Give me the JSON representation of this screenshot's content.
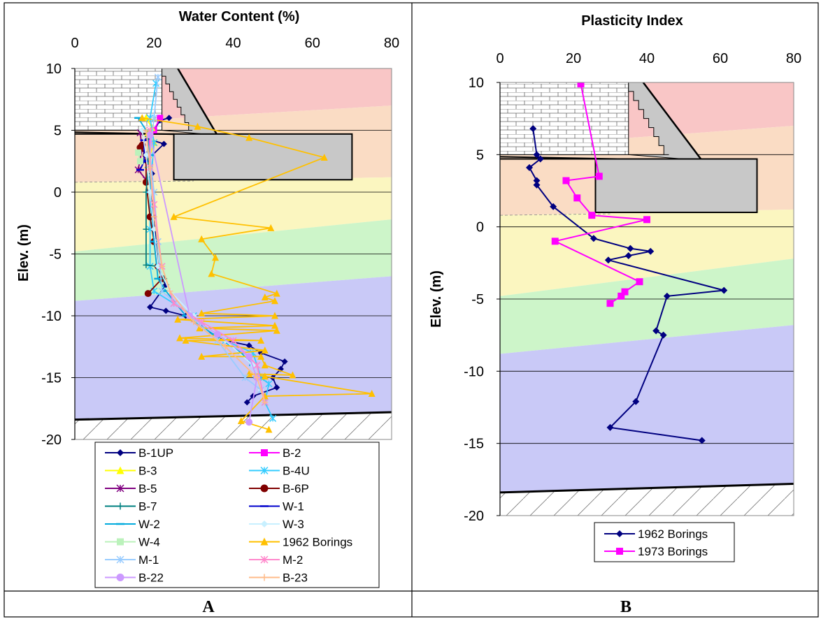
{
  "captions": {
    "left": "A",
    "right": "B"
  },
  "chart_data": [
    {
      "type": "line",
      "title": "Water Content (%)",
      "ylabel": "Elev. (m)",
      "xlabel": "",
      "xlim": [
        0,
        80
      ],
      "ylim": [
        -20,
        10
      ],
      "x_ticks": [
        "0",
        "20",
        "40",
        "60",
        "80"
      ],
      "y_ticks": [
        "10",
        "5",
        "0",
        "-5",
        "-10",
        "-15",
        "-20"
      ],
      "grid": "horizontal",
      "legend_position": "bottom",
      "layers": [
        {
          "color": "#f9c6c6",
          "top_left": 10,
          "top_right": 10,
          "bot_left": 5.5,
          "bot_right": 7
        },
        {
          "color": "#fadcc4",
          "top_left": 5.5,
          "top_right": 7,
          "bot_left": 0.8,
          "bot_right": 1.2
        },
        {
          "color": "#fbf6c0",
          "top_left": 0.8,
          "top_right": 1.2,
          "bot_left": -4.8,
          "bot_right": -2.2
        },
        {
          "color": "#cdf5c9",
          "top_left": -4.8,
          "top_right": -2.2,
          "bot_left": -8.8,
          "bot_right": -6.8
        },
        {
          "color": "#c9c9f7",
          "top_left": -8.8,
          "top_right": -6.8,
          "bot_left": -18.4,
          "bot_right": -17.8
        }
      ],
      "wall": {
        "x0": 0,
        "x1": 22,
        "y0": 5,
        "y1": 10,
        "slope_top_x": 22,
        "slope_bottom_x": 36
      },
      "structure": {
        "x0": 25,
        "x1": 70,
        "y0": 1,
        "y1": 4.7
      },
      "bedrock": {
        "y_left": -18.4,
        "y_right": -17.8
      },
      "series": [
        {
          "name": "B-1UP",
          "color": "#000080",
          "marker": "diamond",
          "points": [
            [
              23.8,
              6
            ],
            [
              21.5,
              5.8
            ],
            [
              20,
              5
            ],
            [
              18.5,
              4.3
            ],
            [
              22.5,
              3.9
            ],
            [
              18,
              2.5
            ],
            [
              19.5,
              1.5
            ],
            [
              19,
              0
            ],
            [
              20,
              -2
            ],
            [
              20.5,
              -4
            ],
            [
              21,
              -6
            ],
            [
              22,
              -7
            ],
            [
              23,
              -7.5
            ],
            [
              19,
              -9.3
            ],
            [
              23,
              -9.6
            ],
            [
              28,
              -10
            ],
            [
              32,
              -11
            ],
            [
              38,
              -12
            ],
            [
              44,
              -12.4
            ],
            [
              47,
              -13
            ],
            [
              53,
              -13.7
            ],
            [
              52,
              -14.3
            ],
            [
              50,
              -15
            ],
            [
              51,
              -15.8
            ],
            [
              45,
              -16.5
            ],
            [
              43.5,
              -17
            ]
          ]
        },
        {
          "name": "B-2",
          "color": "#ff00ff",
          "marker": "square",
          "points": [
            [
              21.5,
              6
            ],
            [
              20,
              5
            ],
            [
              19,
              4
            ]
          ]
        },
        {
          "name": "B-3",
          "color": "#ffff00",
          "marker": "triangle",
          "points": [
            [
              18,
              6
            ],
            [
              19.5,
              5.2
            ],
            [
              18.5,
              4.8
            ],
            [
              20,
              4
            ],
            [
              19,
              3
            ]
          ]
        },
        {
          "name": "B-4U",
          "color": "#33ccff",
          "marker": "xstar",
          "points": [
            [
              20.5,
              8.8
            ],
            [
              19,
              6
            ],
            [
              20,
              4
            ],
            [
              19,
              0
            ],
            [
              19,
              -3
            ],
            [
              19,
              -6
            ],
            [
              20,
              -8
            ],
            [
              25,
              -9
            ],
            [
              30,
              -10
            ],
            [
              38,
              -12
            ],
            [
              45,
              -13
            ],
            [
              47,
              -15
            ],
            [
              49,
              -15.5
            ],
            [
              48,
              -17
            ],
            [
              50,
              -18.3
            ]
          ]
        },
        {
          "name": "B-5",
          "color": "#800080",
          "marker": "xstar",
          "points": [
            [
              16.5,
              4.8
            ],
            [
              17,
              3.5
            ],
            [
              16,
              1.8
            ],
            [
              18,
              1
            ]
          ]
        },
        {
          "name": "B-6P",
          "color": "#800000",
          "marker": "circle",
          "points": [
            [
              17,
              3.8
            ],
            [
              16.5,
              3.6
            ],
            [
              18,
              3
            ],
            [
              18,
              0.8
            ],
            [
              19,
              -2
            ],
            [
              20,
              -4
            ],
            [
              21,
              -6
            ],
            [
              22,
              -7
            ],
            [
              18.5,
              -8.2
            ]
          ]
        },
        {
          "name": "B-7",
          "color": "#008080",
          "marker": "plus",
          "points": [
            [
              18.5,
              4.5
            ],
            [
              18.5,
              2
            ],
            [
              18,
              0
            ],
            [
              18,
              -3
            ],
            [
              18,
              -5.9
            ],
            [
              21,
              -6
            ],
            [
              22.5,
              -7
            ]
          ]
        },
        {
          "name": "W-1",
          "color": "#0000cc",
          "marker": "dash",
          "points": [
            [
              17.5,
              4.2
            ],
            [
              17.5,
              2.5
            ],
            [
              16.5,
              1.8
            ]
          ]
        },
        {
          "name": "W-2",
          "color": "#00aadd",
          "marker": "dash",
          "points": [
            [
              16,
              6
            ],
            [
              18,
              5
            ],
            [
              19,
              3
            ],
            [
              19,
              0
            ],
            [
              20,
              -4
            ],
            [
              21,
              -7
            ],
            [
              23,
              -8
            ],
            [
              28,
              -10
            ],
            [
              35,
              -11.5
            ],
            [
              42,
              -13
            ],
            [
              45,
              -14
            ],
            [
              46,
              -15
            ]
          ]
        },
        {
          "name": "W-3",
          "color": "#c8f0ff",
          "marker": "diamond",
          "points": [
            [
              17,
              5
            ],
            [
              18,
              3
            ],
            [
              19,
              0
            ],
            [
              20,
              -3
            ],
            [
              21,
              -6
            ],
            [
              24,
              -8
            ],
            [
              30,
              -10
            ],
            [
              38,
              -12
            ],
            [
              45,
              -14
            ],
            [
              47,
              -16
            ]
          ]
        },
        {
          "name": "W-4",
          "color": "#bbf2bb",
          "marker": "square",
          "points": [
            [
              16,
              3.2
            ],
            [
              16.5,
              2.5
            ]
          ]
        },
        {
          "name": "1962 Borings",
          "color": "#ffc000",
          "marker": "triangle",
          "points": [
            [
              17,
              6
            ],
            [
              31,
              5.3
            ],
            [
              44,
              4.4
            ],
            [
              63,
              2.8
            ],
            [
              25,
              -2
            ],
            [
              49.5,
              -2.9
            ],
            [
              32,
              -3.8
            ],
            [
              35.5,
              -5.3
            ],
            [
              34.5,
              -6.6
            ],
            [
              51,
              -8.2
            ],
            [
              48,
              -8.5
            ],
            [
              50.5,
              -8.8
            ],
            [
              32,
              -9.8
            ],
            [
              50.5,
              -10
            ],
            [
              26,
              -10.3
            ],
            [
              50.5,
              -10.8
            ],
            [
              31.5,
              -11
            ],
            [
              51,
              -11.2
            ],
            [
              26.5,
              -11.8
            ],
            [
              47,
              -12
            ],
            [
              28,
              -12
            ],
            [
              48,
              -12.8
            ],
            [
              32,
              -13.3
            ],
            [
              47,
              -13.3
            ],
            [
              48,
              -14
            ],
            [
              55,
              -14.8
            ],
            [
              44,
              -14.7
            ],
            [
              48,
              -14.9
            ],
            [
              75,
              -16.3
            ],
            [
              48,
              -16.5
            ],
            [
              42,
              -18.5
            ],
            [
              49,
              -19.2
            ]
          ]
        },
        {
          "name": "M-1",
          "color": "#99ccff",
          "marker": "xstar",
          "points": [
            [
              21,
              9.3
            ],
            [
              20,
              6
            ],
            [
              19,
              3
            ],
            [
              20,
              0
            ],
            [
              21,
              -4
            ],
            [
              22,
              -8
            ],
            [
              29,
              -10
            ],
            [
              36,
              -12
            ],
            [
              43,
              -15
            ],
            [
              47,
              -16
            ]
          ]
        },
        {
          "name": "M-2",
          "color": "#ff88cc",
          "marker": "xstar",
          "points": [
            [
              19,
              5
            ],
            [
              19,
              2
            ],
            [
              20,
              -1
            ],
            [
              22,
              -6
            ],
            [
              25,
              -9
            ],
            [
              32,
              -10.5
            ],
            [
              40,
              -12
            ],
            [
              46,
              -14
            ],
            [
              48,
              -17
            ]
          ]
        },
        {
          "name": "B-22",
          "color": "#cc99ff",
          "marker": "circle",
          "points": [
            [
              19,
              4.6
            ],
            [
              29,
              -10
            ],
            [
              36,
              -11.5
            ],
            [
              44,
              -13.3
            ],
            [
              46,
              -15
            ],
            [
              44,
              -18.6
            ]
          ]
        },
        {
          "name": "B-23",
          "color": "#ffbb88",
          "marker": "plus",
          "points": [
            [
              18,
              5
            ],
            [
              19,
              2
            ],
            [
              20,
              -2
            ],
            [
              22,
              -6
            ],
            [
              24,
              -8
            ],
            [
              30,
              -10.5
            ],
            [
              38,
              -12.5
            ],
            [
              46,
              -15
            ],
            [
              48,
              -17
            ]
          ]
        }
      ]
    },
    {
      "type": "line",
      "title": "Plasticity Index",
      "ylabel": "Elev. (m)",
      "xlabel": "",
      "xlim": [
        0,
        80
      ],
      "ylim": [
        -20,
        10
      ],
      "x_ticks": [
        "0",
        "20",
        "40",
        "60",
        "80"
      ],
      "y_ticks": [
        "10",
        "5",
        "0",
        "-5",
        "-10",
        "-15",
        "-20"
      ],
      "grid": "horizontal",
      "legend_position": "bottom",
      "layers": [
        {
          "color": "#f9c6c6",
          "top_left": 10,
          "top_right": 10,
          "bot_left": 5.5,
          "bot_right": 7
        },
        {
          "color": "#fadcc4",
          "top_left": 5.5,
          "top_right": 7,
          "bot_left": 0.8,
          "bot_right": 1.2
        },
        {
          "color": "#fbf6c0",
          "top_left": 0.8,
          "top_right": 1.2,
          "bot_left": -4.8,
          "bot_right": -2.2
        },
        {
          "color": "#cdf5c9",
          "top_left": -4.8,
          "top_right": -2.2,
          "bot_left": -8.8,
          "bot_right": -6.8
        },
        {
          "color": "#c9c9f7",
          "top_left": -8.8,
          "top_right": -6.8,
          "bot_left": -18.4,
          "bot_right": -17.8
        }
      ],
      "wall": {
        "x0": 0,
        "x1": 35,
        "y0": 5,
        "y1": 10,
        "slope_top_x": 35,
        "slope_bottom_x": 55
      },
      "structure": {
        "x0": 26,
        "x1": 70,
        "y0": 1,
        "y1": 4.7
      },
      "bedrock": {
        "y_left": -18.4,
        "y_right": -17.8
      },
      "series": [
        {
          "name": "1962 Borings",
          "color": "#000080",
          "marker": "diamond",
          "points": [
            [
              9,
              6.8
            ],
            [
              10,
              5
            ],
            [
              11,
              4.7
            ],
            [
              8,
              4.1
            ],
            [
              10,
              3.2
            ],
            [
              10,
              2.9
            ],
            [
              14.5,
              1.4
            ],
            [
              25.5,
              -0.8
            ],
            [
              35.5,
              -1.5
            ],
            [
              41,
              -1.7
            ],
            [
              35,
              -2
            ],
            [
              29.5,
              -2.3
            ],
            [
              61,
              -4.4
            ],
            [
              45.5,
              -4.8
            ],
            [
              42.5,
              -7.2
            ],
            [
              44.5,
              -7.5
            ],
            [
              37,
              -12.1
            ],
            [
              30,
              -13.9
            ],
            [
              55,
              -14.8
            ]
          ]
        },
        {
          "name": "1973 Borings",
          "color": "#ff00ff",
          "marker": "square",
          "points": [
            [
              22,
              9.9
            ],
            [
              27,
              3.5
            ],
            [
              18,
              3.2
            ],
            [
              21,
              2
            ],
            [
              25,
              0.8
            ],
            [
              40,
              0.5
            ],
            [
              15,
              -1
            ],
            [
              38,
              -3.8
            ],
            [
              34,
              -4.5
            ],
            [
              33,
              -4.8
            ],
            [
              30,
              -5.3
            ]
          ]
        }
      ]
    }
  ]
}
